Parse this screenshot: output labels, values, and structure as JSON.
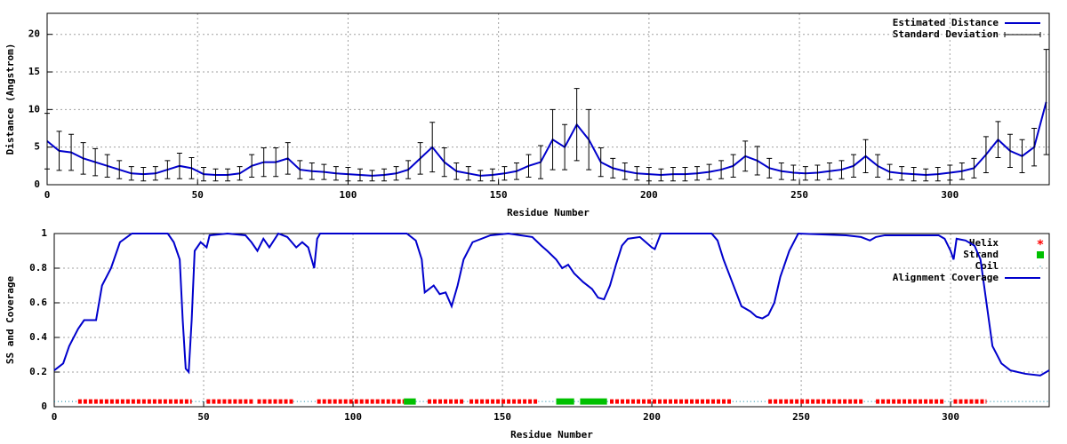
{
  "chart_data": [
    {
      "type": "line",
      "xlabel": "Residue Number",
      "ylabel": "Distance (Angstrom)",
      "xlim": [
        0,
        333
      ],
      "ylim": [
        0,
        22.8
      ],
      "xticks": [
        0,
        50,
        100,
        150,
        200,
        250,
        300
      ],
      "yticks": [
        0,
        5,
        10,
        15,
        20
      ],
      "grid": true,
      "legend": "top-right",
      "x": [
        0,
        4,
        8,
        12,
        16,
        20,
        24,
        28,
        32,
        36,
        40,
        44,
        48,
        52,
        56,
        60,
        64,
        68,
        72,
        76,
        80,
        84,
        88,
        92,
        96,
        100,
        104,
        108,
        112,
        116,
        120,
        124,
        128,
        132,
        136,
        140,
        144,
        148,
        152,
        156,
        160,
        164,
        168,
        172,
        176,
        180,
        184,
        188,
        192,
        196,
        200,
        204,
        208,
        212,
        216,
        220,
        224,
        228,
        232,
        236,
        240,
        244,
        248,
        252,
        256,
        260,
        264,
        268,
        272,
        276,
        280,
        284,
        288,
        292,
        296,
        300,
        304,
        308,
        312,
        316,
        320,
        324,
        328,
        332
      ],
      "series": [
        {
          "name": "Estimated Distance",
          "color": "#0000cc",
          "values": [
            5.8,
            4.5,
            4.3,
            3.5,
            3.0,
            2.5,
            2.0,
            1.5,
            1.4,
            1.5,
            2.0,
            2.5,
            2.2,
            1.4,
            1.3,
            1.3,
            1.5,
            2.5,
            3.0,
            3.0,
            3.5,
            2.0,
            1.8,
            1.7,
            1.5,
            1.4,
            1.3,
            1.2,
            1.3,
            1.5,
            2.0,
            3.5,
            5.0,
            3.0,
            1.8,
            1.5,
            1.2,
            1.3,
            1.5,
            1.8,
            2.5,
            3.0,
            6.0,
            5.0,
            8.0,
            6.0,
            3.0,
            2.2,
            1.8,
            1.5,
            1.4,
            1.3,
            1.4,
            1.4,
            1.5,
            1.7,
            2.0,
            2.5,
            3.8,
            3.2,
            2.2,
            1.8,
            1.6,
            1.5,
            1.6,
            1.8,
            2.0,
            2.5,
            3.8,
            2.5,
            1.7,
            1.5,
            1.4,
            1.3,
            1.4,
            1.6,
            1.8,
            2.2,
            4.0,
            6.0,
            4.5,
            3.8,
            5.0,
            11.0
          ]
        },
        {
          "name": "Standard Deviation",
          "color": "#000000",
          "errors": [
            3.7,
            2.6,
            2.4,
            2.1,
            1.8,
            1.5,
            1.2,
            0.9,
            0.9,
            0.9,
            1.2,
            1.7,
            1.4,
            0.9,
            0.8,
            0.8,
            0.9,
            1.5,
            1.9,
            1.9,
            2.1,
            1.2,
            1.1,
            1.0,
            0.9,
            0.9,
            0.8,
            0.7,
            0.8,
            0.9,
            1.2,
            2.1,
            3.3,
            1.9,
            1.1,
            0.9,
            0.7,
            0.8,
            0.9,
            1.1,
            1.5,
            2.2,
            4.0,
            3.0,
            4.8,
            4.0,
            1.9,
            1.3,
            1.1,
            0.9,
            0.9,
            0.8,
            0.9,
            0.9,
            0.9,
            1.0,
            1.2,
            1.5,
            2.0,
            1.9,
            1.3,
            1.1,
            1.0,
            0.9,
            1.0,
            1.1,
            1.2,
            1.5,
            2.2,
            1.5,
            1.0,
            0.9,
            0.9,
            0.8,
            0.9,
            1.0,
            1.1,
            1.3,
            2.4,
            2.4,
            2.2,
            2.2,
            2.5,
            7.0
          ]
        }
      ]
    },
    {
      "type": "line",
      "xlabel": "Residue Number",
      "ylabel": "SS and Coverage",
      "xlim": [
        0,
        333
      ],
      "ylim": [
        0,
        1
      ],
      "xticks": [
        0,
        50,
        100,
        150,
        200,
        250,
        300
      ],
      "yticks": [
        0,
        0.2,
        0.4,
        0.6,
        0.8,
        1
      ],
      "grid": true,
      "legend": "top-right",
      "series": [
        {
          "name": "Helix",
          "color": "#ff0000",
          "y": 0.03,
          "segments": [
            [
              8,
              46
            ],
            [
              51,
              67
            ],
            [
              68,
              80
            ],
            [
              88,
              117
            ],
            [
              125,
              137
            ],
            [
              139,
              162
            ],
            [
              186,
              227
            ],
            [
              239,
              271
            ],
            [
              275,
              298
            ],
            [
              301,
              312
            ]
          ]
        },
        {
          "name": "Strand",
          "color": "#00c000",
          "y": 0.03,
          "segments": [
            [
              117,
              121
            ],
            [
              168,
              174
            ],
            [
              176,
              185
            ]
          ]
        },
        {
          "name": "Coil",
          "color": "#0080a0",
          "y": 0.03,
          "segments": [
            [
              0,
              8
            ],
            [
              46,
              51
            ],
            [
              80,
              88
            ],
            [
              121,
              125
            ],
            [
              137,
              139
            ],
            [
              162,
              168
            ],
            [
              174,
              176
            ],
            [
              185,
              186
            ],
            [
              227,
              239
            ],
            [
              271,
              275
            ],
            [
              298,
              301
            ],
            [
              312,
              333
            ]
          ]
        },
        {
          "name": "Alignment Coverage",
          "color": "#0000cc",
          "x": [
            0,
            3,
            5,
            8,
            10,
            14,
            16,
            19,
            22,
            26,
            38,
            40,
            42,
            43,
            44,
            45,
            46,
            47,
            49,
            51,
            52,
            58,
            64,
            66,
            68,
            70,
            72,
            75,
            78,
            81,
            83,
            85,
            86,
            87,
            88,
            89,
            118,
            121,
            123,
            124,
            127,
            129,
            131,
            133,
            135,
            137,
            140,
            146,
            152,
            160,
            163,
            165,
            168,
            170,
            172,
            174,
            177,
            180,
            182,
            184,
            186,
            188,
            190,
            192,
            196,
            198,
            200,
            201,
            203,
            220,
            222,
            224,
            226,
            228,
            230,
            233,
            235,
            237,
            239,
            241,
            243,
            246,
            249,
            265,
            270,
            273,
            275,
            278,
            296,
            298,
            300,
            301,
            302,
            305,
            308,
            310,
            312,
            314,
            317,
            320,
            325,
            330,
            333
          ],
          "values": [
            0.21,
            0.25,
            0.35,
            0.45,
            0.5,
            0.5,
            0.7,
            0.8,
            0.95,
            1.0,
            1.0,
            0.95,
            0.85,
            0.5,
            0.22,
            0.2,
            0.5,
            0.9,
            0.95,
            0.92,
            0.99,
            1.0,
            0.99,
            0.95,
            0.9,
            0.97,
            0.92,
            1.0,
            0.98,
            0.92,
            0.95,
            0.92,
            0.86,
            0.8,
            0.97,
            1.0,
            1.0,
            0.96,
            0.85,
            0.66,
            0.7,
            0.65,
            0.66,
            0.58,
            0.7,
            0.85,
            0.95,
            0.99,
            1.0,
            0.98,
            0.93,
            0.9,
            0.85,
            0.8,
            0.82,
            0.77,
            0.72,
            0.68,
            0.63,
            0.62,
            0.7,
            0.82,
            0.93,
            0.97,
            0.98,
            0.95,
            0.92,
            0.91,
            1.0,
            1.0,
            0.96,
            0.85,
            0.76,
            0.67,
            0.58,
            0.55,
            0.52,
            0.51,
            0.53,
            0.6,
            0.75,
            0.9,
            1.0,
            0.99,
            0.98,
            0.96,
            0.98,
            0.99,
            0.99,
            0.97,
            0.9,
            0.85,
            0.97,
            0.96,
            0.93,
            0.85,
            0.6,
            0.35,
            0.25,
            0.21,
            0.19,
            0.18,
            0.21
          ]
        }
      ]
    }
  ]
}
